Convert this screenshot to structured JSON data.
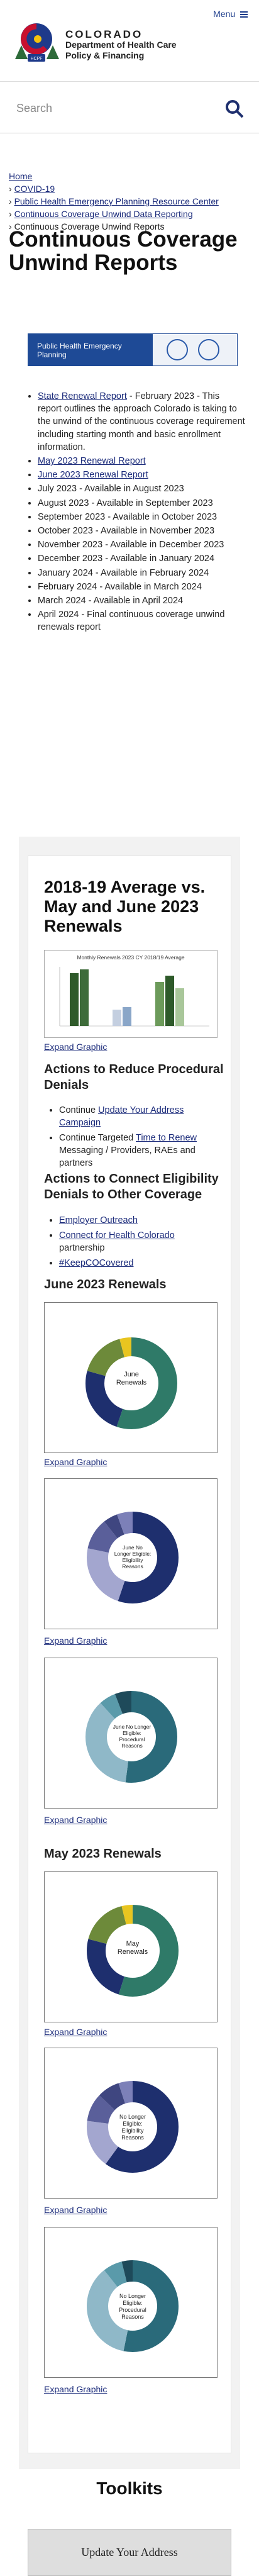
{
  "header": {
    "menu_label": "Menu",
    "brand_top": "COLORADO",
    "brand_line1": "Department of Health Care",
    "brand_line2": "Policy & Financing",
    "logo_text": "HCPF"
  },
  "search": {
    "placeholder": "Search"
  },
  "breadcrumbs": [
    {
      "label": "Home",
      "prefix": ""
    },
    {
      "label": "COVID-19",
      "prefix": "›"
    },
    {
      "label": "Public Health Emergency Planning Resource Center",
      "prefix": "›"
    },
    {
      "label": "Continuous Coverage Unwind Data Reporting",
      "prefix": "›"
    },
    {
      "label": "Continuous Coverage Unwind Reports",
      "prefix": "›"
    }
  ],
  "page_title": "Continuous Coverage Unwind Reports",
  "banner": {
    "text": "Public Health Emergency Planning"
  },
  "reports": {
    "item0_link": "State Renewal Report",
    "item0_text": " - February 2023 - This report outlines the approach Colorado is taking to the unwind of the continuous coverage requirement including starting month and basic enrollment information.",
    "item1_link": "May 2023 Renewal Report",
    "item2_link": "June 2023 Renewal Report",
    "plain": [
      "July 2023 - Available in August 2023",
      "August 2023 - Available in September 2023",
      "September 2023 - Available in October 2023",
      "October 2023 - Available in November 2023",
      "November 2023 - Available in December 2023",
      "December 2023 - Available in January 2024",
      "January 2024 - Available in February 2024",
      "February 2024 - Available in March 2024",
      "March 2024 - Available in April 2024",
      "April 2024 - Final continuous coverage unwind renewals report"
    ]
  },
  "section": {
    "heading": "2018-19 Average vs. May and June 2023 Renewals",
    "chart_title": "Monthly Renewals 2023 CY 2018/19 Average",
    "expand": "Expand Graphic",
    "actions_heading": "Actions to Reduce Procedural Denials",
    "actions": [
      {
        "pre": "Continue ",
        "link": "Update Your Address Campaign",
        "post": ""
      },
      {
        "pre": "Continue Targeted ",
        "link": "Time to Renew",
        "post": " Messaging / Providers, RAEs and partners"
      }
    ],
    "connect_heading": "Actions to Connect Eligibility Denials to Other Coverage",
    "connect": [
      {
        "link": "Employer Outreach",
        "post": ""
      },
      {
        "link": "Connect for Health Colorado",
        "post": " partnership"
      },
      {
        "link": "#KeepCOCovered",
        "post": ""
      }
    ],
    "june_heading": "June 2023 Renewals",
    "may_heading": "May 2023 Renewals",
    "donut_center": {
      "june_renewals": "June Renewals",
      "june_elig": "June No Longer Eligible: Eligibility Reasons",
      "june_proc": "June No Longer Eligible: Procedural Reasons",
      "may_renewals": "May Renewals",
      "may_elig": "No Longer Eligible: Eligibility Reasons",
      "may_proc": "No Longer Eligible: Procedural Reasons"
    }
  },
  "toolkits": {
    "heading": "Toolkits",
    "button": "Update Your Address"
  },
  "colors": {
    "navy": "#1e2f6e",
    "accent": "#1e4a96",
    "green": "#3d6b3a"
  }
}
